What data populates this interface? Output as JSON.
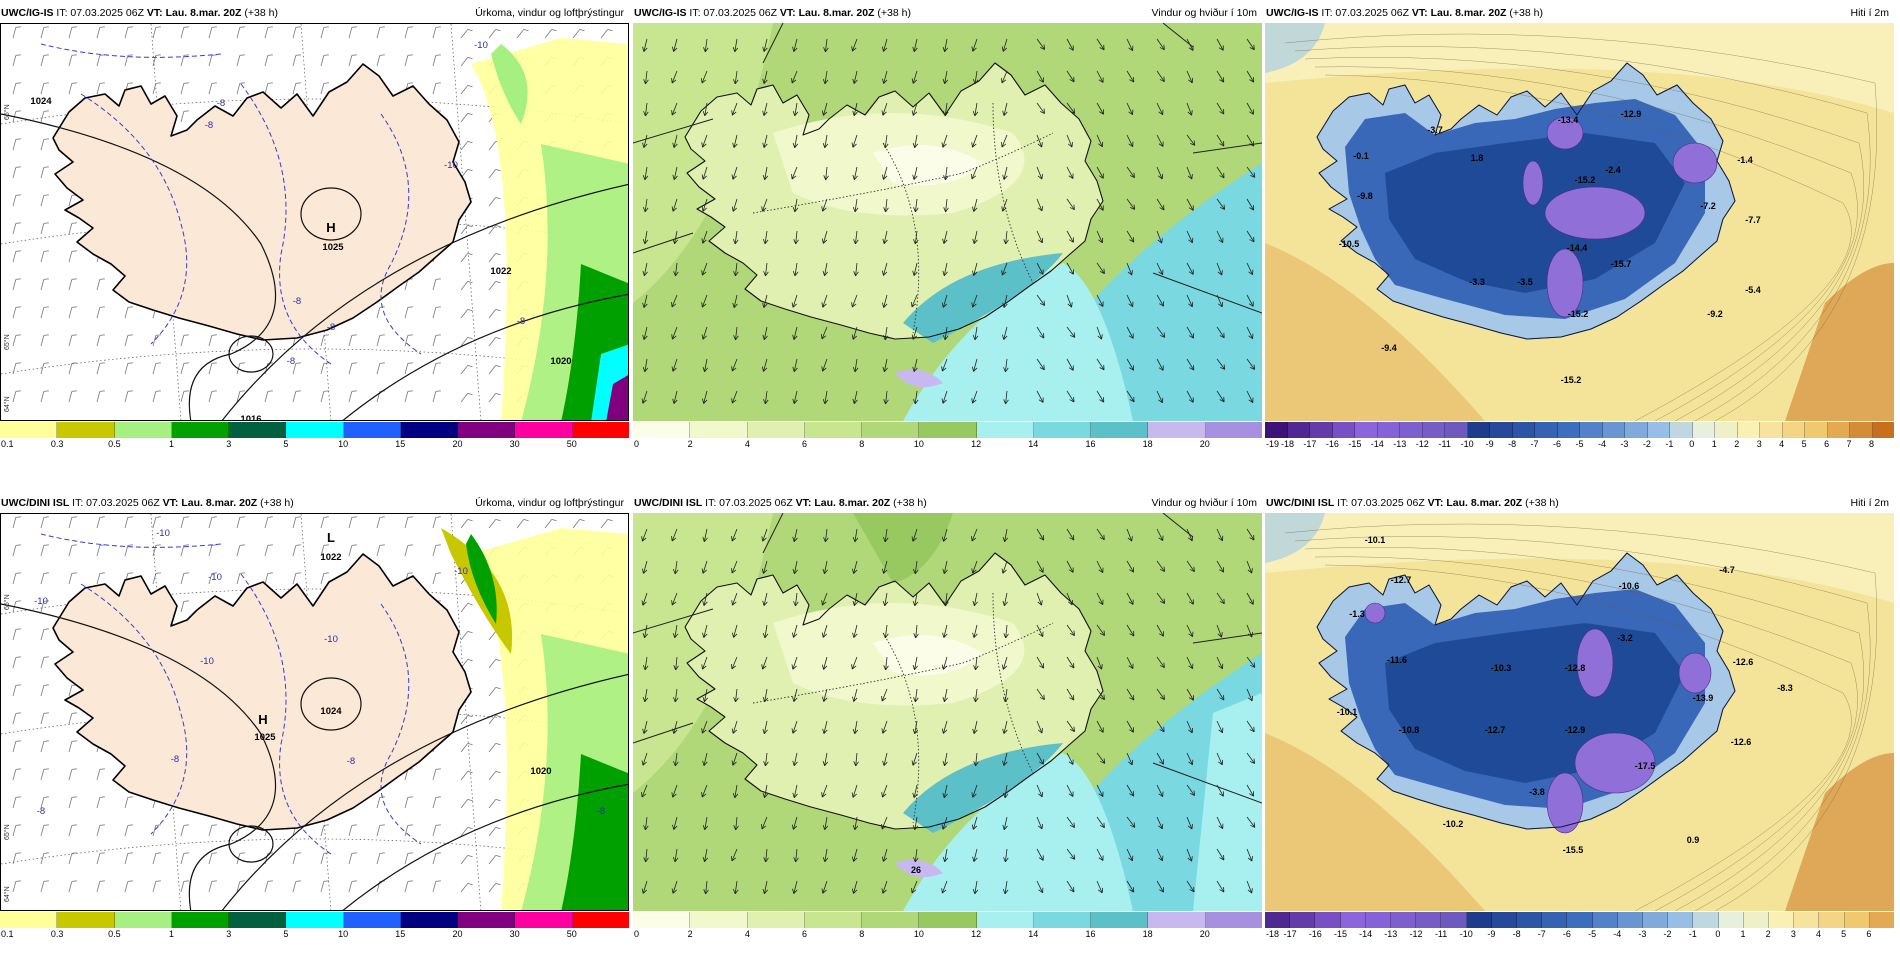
{
  "rows": [
    {
      "model": "UWC/IG-IS",
      "panels": [
        {
          "id": "precip",
          "model": "UWC/IG-IS",
          "it": "IT: 07.03.2025 06Z",
          "vt": "VT: Lau. 8.mar. 20Z",
          "lead": "(+38 h)",
          "title": "Úrkoma, vindur og loftþrýstingur",
          "ticks": [
            "0.1",
            "0.3",
            "0.5",
            "1",
            "3",
            "5",
            "10",
            "15",
            "20",
            "30",
            "50"
          ],
          "colors": [
            "#ffff99",
            "#c8c800",
            "#a6f081",
            "#00a000",
            "#006040",
            "#00ffff",
            "#2060ff",
            "#000080",
            "#800080",
            "#ff00a0",
            "#ff0000"
          ],
          "labels": [
            "-10",
            "-8",
            "-8",
            "-10",
            "-8",
            "-8",
            "-8",
            "-8",
            "1024",
            "1020",
            "1016",
            "1022",
            "H",
            "1025"
          ]
        },
        {
          "id": "wind",
          "model": "UWC/IG-IS",
          "it": "IT: 07.03.2025 06Z",
          "vt": "VT: Lau. 8.mar. 20Z",
          "lead": "(+38 h)",
          "title": "Vindur og hviður í 10m",
          "ticks": [
            "0",
            "2",
            "4",
            "6",
            "8",
            "10",
            "12",
            "14",
            "16",
            "18",
            "20"
          ],
          "colors": [
            "#fbfde8",
            "#f0f8cc",
            "#dff0b0",
            "#c8e690",
            "#b0d878",
            "#98c860",
            "#a8f0f0",
            "#7ad8e0",
            "#5cc0c8",
            "#c8b8f0",
            "#a890e0"
          ],
          "labels": []
        },
        {
          "id": "temp",
          "model": "UWC/IG-IS",
          "it": "IT: 07.03.2025 06Z",
          "vt": "VT: Lau. 8.mar. 20Z",
          "lead": "(+38 h)",
          "title": "Hiti í 2m",
          "ticks": [
            "-19",
            "-18",
            "-17",
            "-16",
            "-15",
            "-14",
            "-13",
            "-12",
            "-11",
            "-10",
            "-9",
            "-8",
            "-7",
            "-6",
            "-5",
            "-4",
            "-3",
            "-2",
            "-1",
            "0",
            "1",
            "2",
            "3",
            "4",
            "5",
            "6",
            "7",
            "8"
          ],
          "labels": [
            "-3.7",
            "-0.1",
            "-9.8",
            "-10.5",
            "-3.3",
            "-3.5",
            "-9.4",
            "-13.4",
            "-12.9",
            "-15.2",
            "-14.4",
            "-15.7",
            "-15.2",
            "-15.2",
            "-2.4",
            "-1.4",
            "-7.2",
            "-7.7",
            "-5.4",
            "-9.2",
            "1.8"
          ]
        }
      ]
    },
    {
      "model": "UWC/DINI ISL",
      "panels": [
        {
          "id": "precip",
          "model": "UWC/DINI ISL",
          "it": "IT: 07.03.2025 06Z",
          "vt": "VT: Lau. 8.mar. 20Z",
          "lead": "(+38 h)",
          "title": "Úrkoma, vindur og loftþrýstingur",
          "ticks": [
            "0.1",
            "0.3",
            "0.5",
            "1",
            "3",
            "5",
            "10",
            "15",
            "20",
            "30",
            "50"
          ],
          "colors": [
            "#ffff99",
            "#c8c800",
            "#a6f081",
            "#00a000",
            "#006040",
            "#00ffff",
            "#2060ff",
            "#000080",
            "#800080",
            "#ff00a0",
            "#ff0000"
          ],
          "labels": [
            "-10",
            "-10",
            "-10",
            "-10",
            "-10",
            "-10",
            "-8",
            "-8",
            "-8",
            "-8",
            "1024",
            "1020",
            "L",
            "1022",
            "H",
            "1025"
          ]
        },
        {
          "id": "wind",
          "model": "UWC/DINI ISL",
          "it": "IT: 07.03.2025 06Z",
          "vt": "VT: Lau. 8.mar. 20Z",
          "lead": "(+38 h)",
          "title": "Vindur og hviður í 10m",
          "ticks": [
            "0",
            "2",
            "4",
            "6",
            "8",
            "10",
            "12",
            "14",
            "16",
            "18",
            "20"
          ],
          "colors": [
            "#fbfde8",
            "#f0f8cc",
            "#dff0b0",
            "#c8e690",
            "#b0d878",
            "#98c860",
            "#a8f0f0",
            "#7ad8e0",
            "#5cc0c8",
            "#c8b8f0",
            "#a890e0"
          ],
          "labels": [
            "26"
          ]
        },
        {
          "id": "temp",
          "model": "UWC/DINI ISL",
          "it": "IT: 07.03.2025 06Z",
          "vt": "VT: Lau. 8.mar. 20Z",
          "lead": "(+38 h)",
          "title": "Hiti í 2m",
          "ticks": [
            "-18",
            "-17",
            "-16",
            "-15",
            "-14",
            "-13",
            "-12",
            "-11",
            "-10",
            "-9",
            "-8",
            "-7",
            "-6",
            "-5",
            "-4",
            "-3",
            "-2",
            "-1",
            "0",
            "1",
            "2",
            "3",
            "4",
            "5",
            "6"
          ],
          "labels": [
            "-10.1",
            "-12.7",
            "-1.3",
            "-11.6",
            "-10.1",
            "-10.8",
            "-10.3",
            "-12.7",
            "-10.2",
            "-12.9",
            "-12.8",
            "-10.6",
            "-3.2",
            "-4.7",
            "-12.6",
            "-8.3",
            "-13.9",
            "-12.6",
            "-17.5",
            "-3.8",
            "-15.5",
            "0.9"
          ]
        }
      ]
    }
  ],
  "lat_labels": [
    "66°N",
    "65°N",
    "64°N"
  ]
}
